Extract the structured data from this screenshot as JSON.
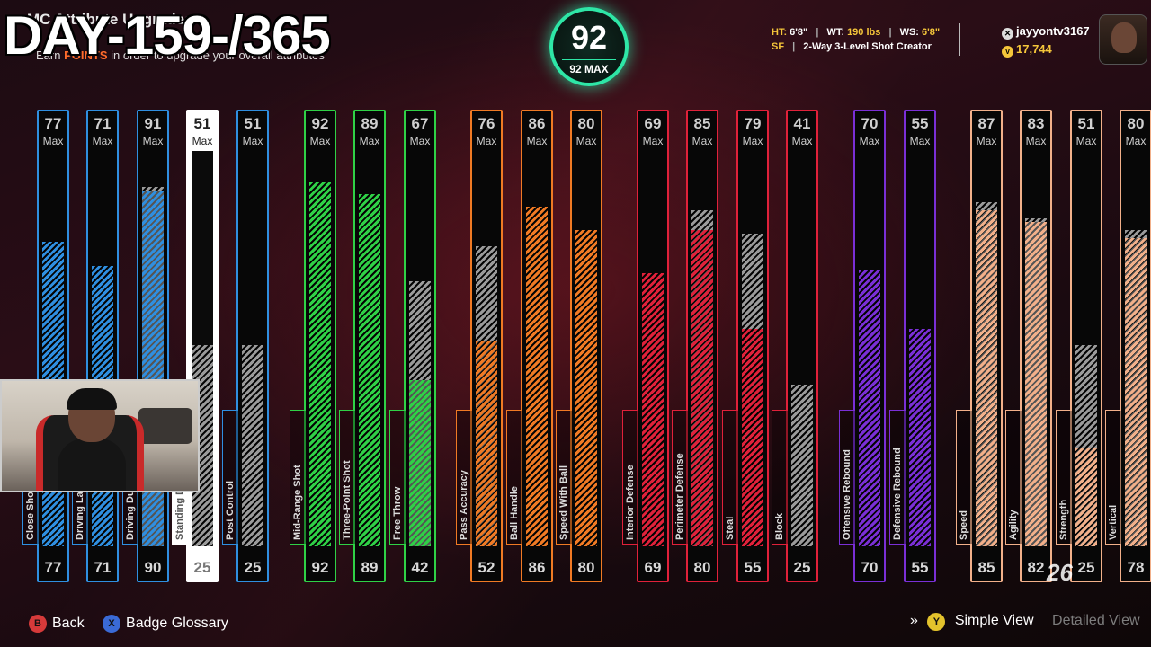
{
  "overlay": {
    "day_text": "DAY-159-/365"
  },
  "header": {
    "title": "MC Attribute Upgrades",
    "subtitle_pre": "Earn",
    "subtitle_accent": "POINTS",
    "subtitle_post": "in order to upgrade your overall attributes"
  },
  "overall": {
    "value": "92",
    "max_label": "92 MAX",
    "ring_color": "#2ee6a6"
  },
  "player": {
    "ht_label": "HT:",
    "ht": "6'8\"",
    "wt_label": "WT:",
    "wt": "190 lbs",
    "ws_label": "WS:",
    "ws": "6'8\"",
    "position": "SF",
    "archetype": "2-Way 3-Level Shot Creator"
  },
  "user": {
    "gamertag": "jayyontv3167",
    "vc": "17,744"
  },
  "max_label": "Max",
  "attributes": [
    {
      "name": "Close Shot",
      "max": "77",
      "current": "77",
      "fill": 77,
      "gray": 0,
      "color": "#2f8fe0"
    },
    {
      "name": "Driving Layup",
      "max": "71",
      "current": "71",
      "fill": 71,
      "gray": 0,
      "color": "#2f8fe0"
    },
    {
      "name": "Driving Dunk",
      "max": "91",
      "current": "90",
      "fill": 90,
      "gray": 91,
      "color": "#2f8fe0"
    },
    {
      "name": "Standing Dunk",
      "max": "51",
      "current": "25",
      "fill": 0,
      "gray": 51,
      "color": "#ffffff",
      "selected": true
    },
    {
      "name": "Post Control",
      "max": "51",
      "current": "25",
      "fill": 0,
      "gray": 51,
      "color": "#2f8fe0"
    },
    {
      "name": "Mid-Range Shot",
      "max": "92",
      "current": "92",
      "fill": 92,
      "gray": 0,
      "color": "#2fd146"
    },
    {
      "name": "Three-Point Shot",
      "max": "89",
      "current": "89",
      "fill": 89,
      "gray": 0,
      "color": "#2fd146"
    },
    {
      "name": "Free Throw",
      "max": "67",
      "current": "42",
      "fill": 42,
      "gray": 67,
      "color": "#2fd146"
    },
    {
      "name": "Pass Accuracy",
      "max": "76",
      "current": "52",
      "fill": 52,
      "gray": 76,
      "color": "#f07a24"
    },
    {
      "name": "Ball Handle",
      "max": "86",
      "current": "86",
      "fill": 86,
      "gray": 0,
      "color": "#f07a24"
    },
    {
      "name": "Speed With Ball",
      "max": "80",
      "current": "80",
      "fill": 80,
      "gray": 0,
      "color": "#f07a24"
    },
    {
      "name": "Interior Defense",
      "max": "69",
      "current": "69",
      "fill": 69,
      "gray": 0,
      "color": "#e0213a"
    },
    {
      "name": "Perimeter Defense",
      "max": "85",
      "current": "80",
      "fill": 80,
      "gray": 85,
      "color": "#e0213a"
    },
    {
      "name": "Steal",
      "max": "79",
      "current": "55",
      "fill": 55,
      "gray": 79,
      "color": "#e0213a"
    },
    {
      "name": "Block",
      "max": "41",
      "current": "25",
      "fill": 0,
      "gray": 41,
      "color": "#e0213a"
    },
    {
      "name": "Offensive Rebound",
      "max": "70",
      "current": "70",
      "fill": 70,
      "gray": 0,
      "color": "#7a2fd6"
    },
    {
      "name": "Defensive Rebound",
      "max": "55",
      "current": "55",
      "fill": 55,
      "gray": 0,
      "color": "#7a2fd6"
    },
    {
      "name": "Speed",
      "max": "87",
      "current": "85",
      "fill": 85,
      "gray": 87,
      "color": "#f2b08a"
    },
    {
      "name": "Agility",
      "max": "83",
      "current": "82",
      "fill": 82,
      "gray": 83,
      "color": "#f2b08a"
    },
    {
      "name": "Strength",
      "max": "51",
      "current": "25",
      "fill": 25,
      "gray": 51,
      "color": "#f2b08a"
    },
    {
      "name": "Vertical",
      "max": "80",
      "current": "78",
      "fill": 78,
      "gray": 80,
      "color": "#f2b08a"
    }
  ],
  "footer": {
    "back_glyph": "B",
    "back": "Back",
    "glossary_glyph": "X",
    "glossary": "Badge Glossary",
    "simple_glyph": "Y",
    "simple_view": "Simple View",
    "detailed_view": "Detailed View",
    "watermark": "26"
  }
}
